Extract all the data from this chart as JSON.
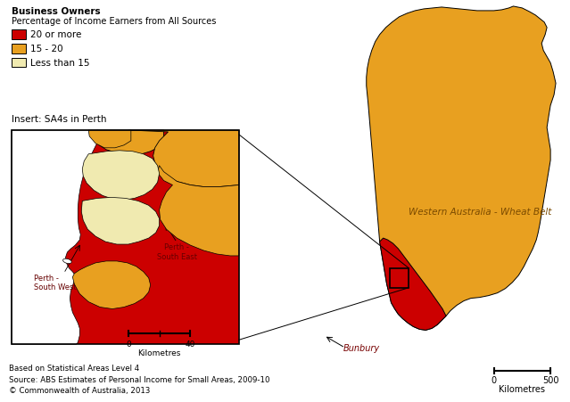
{
  "title1": "Business Owners",
  "title2": "Percentage of Income Earners from All Sources",
  "legend_items": [
    {
      "label": "20 or more",
      "color": "#CC0000"
    },
    {
      "label": "15 - 20",
      "color": "#E8A020"
    },
    {
      "label": "Less than 15",
      "color": "#F0EAB0"
    }
  ],
  "insert_label": "Insert: SA4s in Perth",
  "wa_label": "Western Australia - Wheat Belt",
  "bunbury_label": "Bunbury",
  "perth_sw_label": "Perth -\nSouth West",
  "perth_se_label": "Perth -\nSouth East",
  "source_text": "Based on Statistical Areas Level 4\nSource: ABS Estimates of Personal Income for Small Areas, 2009-10\n© Commonwealth of Australia, 2013",
  "scale_main_0": "0",
  "scale_main_500": "500",
  "scale_main_km": "Kilometres",
  "scale_insert_0": "0",
  "scale_insert_40": "40",
  "scale_insert_km": "Kilometres",
  "bg_color": "#FFFFFF",
  "border_color": "#000000",
  "color_20plus": "#CC0000",
  "color_15_20": "#E8A020",
  "color_lt15": "#F0EAB0"
}
